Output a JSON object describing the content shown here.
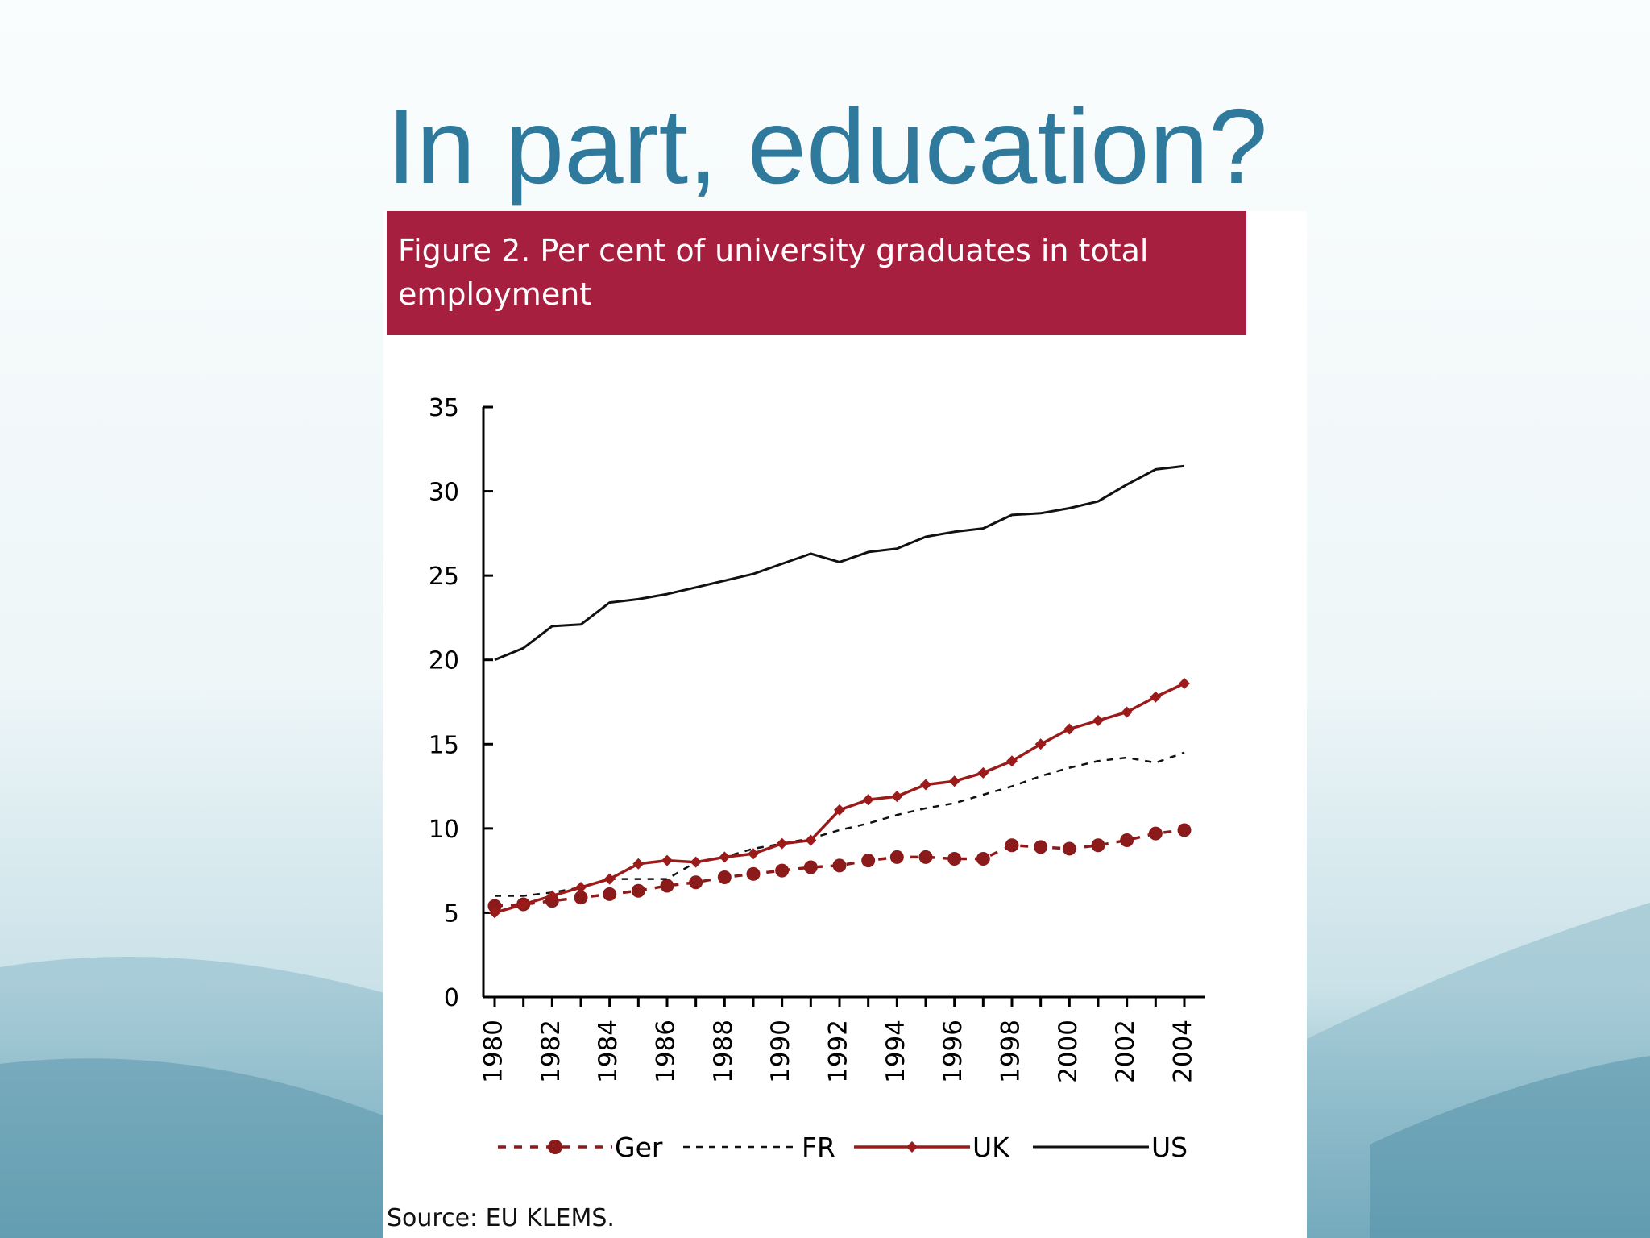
{
  "slide": {
    "title": "In part, education?",
    "figure_caption": "Figure 2. Per cent of university graduates in total employment",
    "source": "Source:  EU KLEMS."
  },
  "colors": {
    "title": "#2f7a9c",
    "header_bar": "#a71f3e",
    "ger": "#8b1a1a",
    "fr": "#111111",
    "uk": "#9b1b1b",
    "us": "#111111"
  },
  "chart_data": {
    "type": "line",
    "title": "",
    "xlabel": "",
    "ylabel": "",
    "ylim": [
      0,
      35
    ],
    "xlim": [
      1980,
      2004
    ],
    "yticks": [
      "0",
      "5",
      "10",
      "15",
      "20",
      "25",
      "30",
      "35"
    ],
    "xticks": [
      "1980",
      "1982",
      "1984",
      "1986",
      "1988",
      "1990",
      "1992",
      "1994",
      "1996",
      "1998",
      "2000",
      "2002",
      "2004"
    ],
    "grid": false,
    "legend_position": "bottom",
    "x": [
      1980,
      1981,
      1982,
      1983,
      1984,
      1985,
      1986,
      1987,
      1988,
      1989,
      1990,
      1991,
      1992,
      1993,
      1994,
      1995,
      1996,
      1997,
      1998,
      1999,
      2000,
      2001,
      2002,
      2003,
      2004
    ],
    "series": [
      {
        "name": "Ger",
        "style": "dashed-circle",
        "values": [
          5.4,
          5.5,
          5.7,
          5.9,
          6.1,
          6.3,
          6.6,
          6.8,
          7.1,
          7.3,
          7.5,
          7.7,
          7.8,
          8.1,
          8.3,
          8.3,
          8.2,
          8.2,
          9.0,
          8.9,
          8.8,
          9.0,
          9.3,
          9.7,
          9.9
        ]
      },
      {
        "name": "FR",
        "style": "dotted",
        "values": [
          6.0,
          6.0,
          6.2,
          6.5,
          7.0,
          7.0,
          7.0,
          8.0,
          8.3,
          8.8,
          9.1,
          9.4,
          9.9,
          10.3,
          10.8,
          11.2,
          11.5,
          12.0,
          12.5,
          13.1,
          13.6,
          14.0,
          14.2,
          13.9,
          14.5
        ]
      },
      {
        "name": "UK",
        "style": "solid-diamond",
        "values": [
          5.0,
          5.5,
          6.0,
          6.5,
          7.0,
          7.9,
          8.1,
          8.0,
          8.3,
          8.5,
          9.1,
          9.3,
          11.1,
          11.7,
          11.9,
          12.6,
          12.8,
          13.3,
          14.0,
          15.0,
          15.9,
          16.4,
          16.9,
          17.8,
          18.6
        ]
      },
      {
        "name": "US",
        "style": "solid",
        "values": [
          20.0,
          20.7,
          22.0,
          22.1,
          23.4,
          23.6,
          23.9,
          24.3,
          24.7,
          25.1,
          25.7,
          26.3,
          25.8,
          26.4,
          26.6,
          27.3,
          27.6,
          27.8,
          28.6,
          28.7,
          29.0,
          29.4,
          30.4,
          31.3,
          31.5
        ]
      }
    ]
  }
}
